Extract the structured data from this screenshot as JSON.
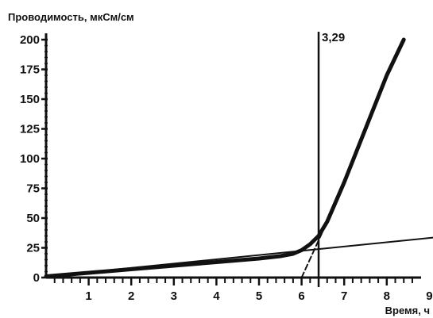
{
  "chart_data": {
    "type": "line",
    "title": "",
    "ylabel": "Проводимость, мкСм/см",
    "xlabel": "Время, ч",
    "xlim": [
      0,
      9.2
    ],
    "ylim": [
      0,
      200
    ],
    "xticks": [
      "1",
      "2",
      "3",
      "4",
      "5",
      "6",
      "7",
      "8",
      "9"
    ],
    "yticks": [
      "0",
      "25",
      "50",
      "75",
      "100",
      "125",
      "150",
      "175",
      "200"
    ],
    "grid": false,
    "series": [
      {
        "style": "thick",
        "x": [
          0,
          1,
          2,
          3,
          4,
          5,
          5.5,
          5.8,
          6.0,
          6.2,
          6.4,
          6.6,
          7.0,
          7.5,
          8.0,
          8.4
        ],
        "y": [
          1,
          4,
          7,
          10,
          13,
          16,
          18,
          20,
          23,
          28,
          35,
          47,
          80,
          125,
          170,
          200
        ]
      },
      {
        "style": "thin-tangent",
        "x": [
          0,
          9.2
        ],
        "y": [
          1,
          34
        ]
      },
      {
        "style": "dashed-tangent",
        "x": [
          6.0,
          6.6
        ],
        "y": [
          0,
          47
        ]
      }
    ],
    "annotations": [
      {
        "text": "3,29",
        "x": 6.4
      }
    ]
  }
}
